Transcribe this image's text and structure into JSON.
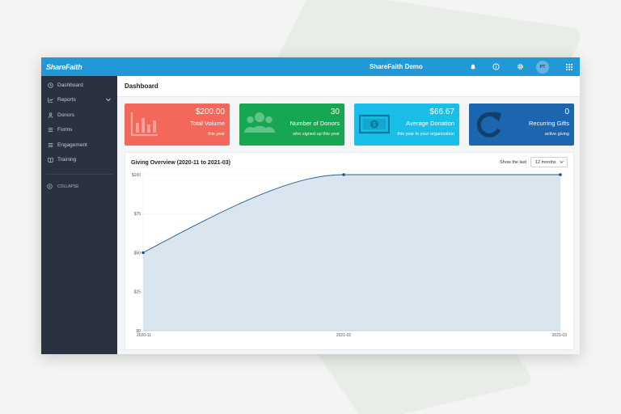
{
  "header": {
    "logo": "ShareFaith",
    "title": "ShareFaith Demo",
    "avatar_initials": "PT",
    "icons": [
      "bell-icon",
      "info-icon",
      "gear-icon",
      "grid-icon"
    ]
  },
  "sidebar": {
    "items": [
      {
        "label": "Dashboard",
        "icon": "clock-icon"
      },
      {
        "label": "Reports",
        "icon": "chart-icon"
      },
      {
        "label": "Donors",
        "icon": "person-icon"
      },
      {
        "label": "Forms",
        "icon": "list-icon"
      },
      {
        "label": "Engagement",
        "icon": "list-icon"
      },
      {
        "label": "Training",
        "icon": "book-icon"
      }
    ],
    "collapse_label": "COLLAPSE"
  },
  "page": {
    "title": "Dashboard"
  },
  "cards": [
    {
      "value": "$200.00",
      "label": "Total Volume",
      "sub": "this year",
      "color": "#f4685c",
      "icon": "bar-chart-icon"
    },
    {
      "value": "30",
      "label": "Number of Donors",
      "sub": "who signed up this year",
      "color": "#17a651",
      "icon": "users-icon"
    },
    {
      "value": "$66.67",
      "label": "Average Donation",
      "sub": "this year to your organization",
      "color": "#19bfe9",
      "icon": "money-icon"
    },
    {
      "value": "0",
      "label": "Recurring Gifts",
      "sub": "active giving",
      "color": "#1c66af",
      "icon": "refresh-icon"
    }
  ],
  "overview": {
    "title": "Giving Overview (2020-11 to 2021-03)",
    "show_label": "Show the last",
    "selected_range": "12 months"
  },
  "chart_data": {
    "type": "area",
    "x": [
      "2020-11",
      "2021-02",
      "2021-03"
    ],
    "values": [
      50,
      100,
      100
    ],
    "ylim": [
      0,
      100
    ],
    "yticks": [
      "$0",
      "$25",
      "$50",
      "$75",
      "$100"
    ],
    "ytick_values": [
      0,
      25,
      50,
      75,
      100
    ],
    "xtick_labels": [
      "2020-11",
      "2021-02",
      "2021-03"
    ],
    "line_color": "#2c5f8a",
    "fill_color": "#d7e4ee"
  }
}
